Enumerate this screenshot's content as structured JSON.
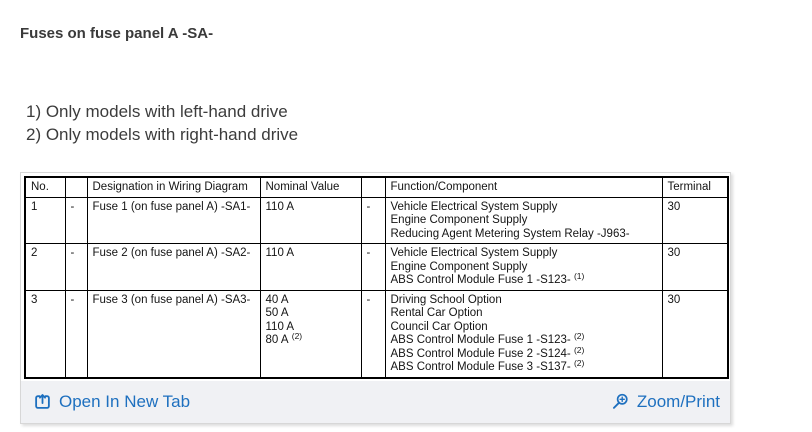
{
  "page": {
    "title": "Fuses on fuse panel A -SA-",
    "footnotes": [
      "1) Only models with left-hand drive",
      "2) Only models with right-hand drive"
    ]
  },
  "table": {
    "headers": [
      "No.",
      "",
      "Designation in Wiring Diagram",
      "Nominal Value",
      "",
      "Function/Component",
      "Terminal"
    ],
    "rows": [
      {
        "no": "1",
        "dash": "-",
        "designation": "Fuse 1 (on fuse panel A) -SA1-",
        "nominal_values": [
          {
            "text": "110 A",
            "sup": ""
          }
        ],
        "functions": [
          {
            "text": "Vehicle Electrical System Supply",
            "sup": ""
          },
          {
            "text": "Engine Component Supply",
            "sup": ""
          },
          {
            "text": "Reducing Agent Metering System Relay -J963-",
            "sup": ""
          }
        ],
        "terminal": "30"
      },
      {
        "no": "2",
        "dash": "-",
        "designation": "Fuse 2 (on fuse panel A) -SA2-",
        "nominal_values": [
          {
            "text": "110 A",
            "sup": ""
          }
        ],
        "functions": [
          {
            "text": "Vehicle Electrical System Supply",
            "sup": ""
          },
          {
            "text": "Engine Component Supply",
            "sup": ""
          },
          {
            "text": "ABS Control Module Fuse 1 -S123-",
            "sup": "(1)"
          }
        ],
        "terminal": "30"
      },
      {
        "no": "3",
        "dash": "-",
        "designation": "Fuse 3 (on fuse panel A) -SA3-",
        "nominal_values": [
          {
            "text": "40 A",
            "sup": ""
          },
          {
            "text": "50 A",
            "sup": ""
          },
          {
            "text": "110 A",
            "sup": ""
          },
          {
            "text": "80 A",
            "sup": "(2)"
          }
        ],
        "functions": [
          {
            "text": "Driving School Option",
            "sup": ""
          },
          {
            "text": "Rental Car Option",
            "sup": ""
          },
          {
            "text": "Council Car Option",
            "sup": ""
          },
          {
            "text": "ABS Control Module Fuse 1 -S123-",
            "sup": "(2)"
          },
          {
            "text": "ABS Control Module Fuse 2 -S124-",
            "sup": "(2)"
          },
          {
            "text": "ABS Control Module Fuse 3 -S137-",
            "sup": "(2)"
          }
        ],
        "terminal": "30"
      }
    ]
  },
  "footer": {
    "open_in_new_tab_label": "Open In New Tab",
    "zoom_print_label": "Zoom/Print"
  },
  "colors": {
    "link_blue": "#1e70bf",
    "footer_bar_bg": "#f0f1f4",
    "table_border": "#000000"
  }
}
